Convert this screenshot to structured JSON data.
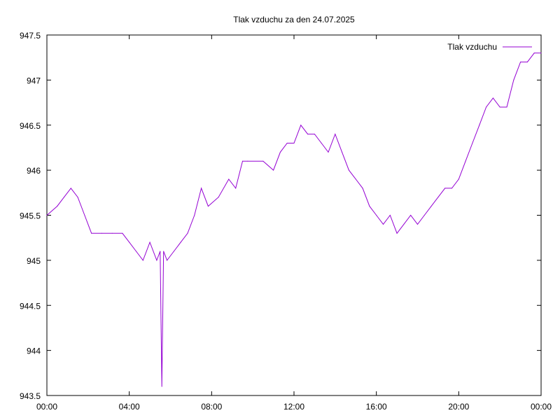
{
  "chart_data": {
    "type": "line",
    "title": "Tlak vzduchu za den 24.07.2025",
    "xlabel": "",
    "ylabel": "",
    "xlim": [
      "00:00",
      "24:00"
    ],
    "ylim": [
      943.5,
      947.5
    ],
    "x_ticks": [
      "00:00",
      "04:00",
      "08:00",
      "12:00",
      "16:00",
      "20:00",
      "00:00"
    ],
    "y_ticks": [
      "943.5",
      "944",
      "944.5",
      "945",
      "945.5",
      "946",
      "946.5",
      "947",
      "947.5"
    ],
    "grid": false,
    "legend_position": "top-right",
    "series": [
      {
        "name": "Tlak vzduchu",
        "color": "#9400d3",
        "x": [
          "00:00",
          "00:30",
          "00:50",
          "01:10",
          "01:30",
          "01:50",
          "02:10",
          "02:40",
          "03:10",
          "03:40",
          "04:00",
          "04:20",
          "04:40",
          "05:00",
          "05:20",
          "05:30",
          "05:35",
          "05:40",
          "05:50",
          "06:10",
          "06:30",
          "06:50",
          "07:10",
          "07:30",
          "07:50",
          "08:20",
          "08:50",
          "09:10",
          "09:30",
          "09:45",
          "10:30",
          "11:00",
          "11:20",
          "11:40",
          "12:00",
          "12:20",
          "12:40",
          "13:00",
          "13:20",
          "13:40",
          "14:00",
          "14:20",
          "14:40",
          "15:00",
          "15:20",
          "15:40",
          "16:00",
          "16:20",
          "16:40",
          "17:00",
          "17:20",
          "17:40",
          "18:00",
          "18:20",
          "18:40",
          "19:00",
          "19:20",
          "19:40",
          "20:00",
          "20:20",
          "20:40",
          "21:00",
          "21:20",
          "21:40",
          "22:00",
          "22:20",
          "22:40",
          "23:00",
          "23:20",
          "23:40",
          "24:00"
        ],
        "values": [
          945.5,
          945.6,
          945.7,
          945.8,
          945.7,
          945.5,
          945.3,
          945.3,
          945.3,
          945.3,
          945.2,
          945.1,
          945.0,
          945.2,
          945.0,
          945.1,
          943.6,
          945.1,
          945.0,
          945.1,
          945.2,
          945.3,
          945.5,
          945.8,
          945.6,
          945.7,
          945.9,
          945.8,
          946.1,
          946.1,
          946.1,
          946.0,
          946.2,
          946.3,
          946.3,
          946.5,
          946.4,
          946.4,
          946.3,
          946.2,
          946.4,
          946.2,
          946.0,
          945.9,
          945.8,
          945.6,
          945.5,
          945.4,
          945.5,
          945.3,
          945.4,
          945.5,
          945.4,
          945.5,
          945.6,
          945.7,
          945.8,
          945.8,
          945.9,
          946.1,
          946.3,
          946.5,
          946.7,
          946.8,
          946.7,
          946.7,
          947.0,
          947.2,
          947.2,
          947.3,
          947.3
        ]
      }
    ]
  }
}
